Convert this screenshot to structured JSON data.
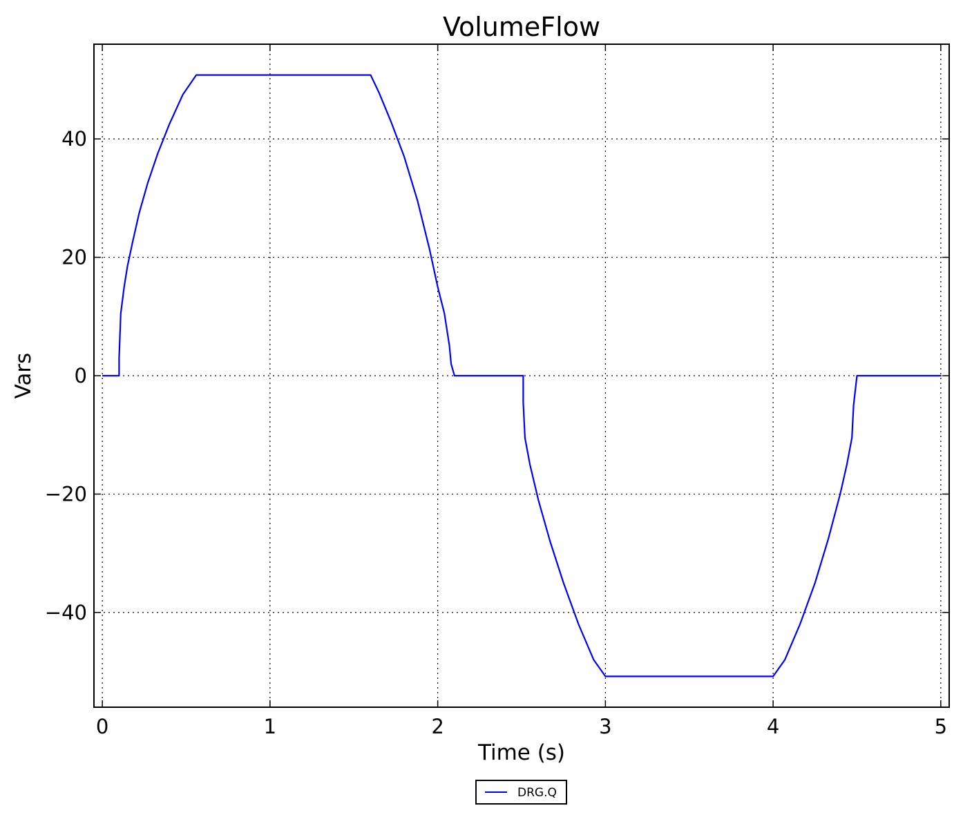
{
  "chart_data": {
    "type": "line",
    "title": "VolumeFlow",
    "xlabel": "Time (s)",
    "ylabel": "Vars",
    "xlim": [
      -0.05,
      5.05
    ],
    "ylim": [
      -56,
      56
    ],
    "xticks": [
      0,
      1,
      2,
      3,
      4,
      5
    ],
    "xtick_labels": [
      "0",
      "1",
      "2",
      "3",
      "4",
      "5"
    ],
    "yticks": [
      -40,
      -20,
      0,
      20,
      40
    ],
    "ytick_labels": [
      "−40",
      "−20",
      "0",
      "20",
      "40"
    ],
    "grid": true,
    "legend_position": "bottom-center",
    "series": [
      {
        "name": "DRG.Q",
        "color": "#0000ff",
        "x": [
          0,
          0.1,
          0.1,
          0.11,
          0.13,
          0.15,
          0.18,
          0.22,
          0.27,
          0.33,
          0.4,
          0.48,
          0.56,
          0.6,
          1.0,
          1.4,
          1.6,
          1.65,
          1.72,
          1.8,
          1.88,
          1.95,
          2.0,
          2.04,
          2.07,
          2.08,
          2.1,
          2.3,
          2.51,
          2.51,
          2.52,
          2.55,
          2.6,
          2.67,
          2.75,
          2.84,
          2.93,
          3.0,
          3.5,
          4.0,
          4.07,
          4.16,
          4.25,
          4.33,
          4.4,
          4.44,
          4.47,
          4.48,
          4.5,
          4.75,
          5.0
        ],
        "y": [
          0,
          0,
          3,
          10.5,
          15,
          18.5,
          22.5,
          27.5,
          32.5,
          37.5,
          42.5,
          47.5,
          50.8,
          50.8,
          50.8,
          50.8,
          50.8,
          47.8,
          43,
          37,
          29.5,
          21.5,
          15,
          10.5,
          5,
          2,
          0,
          0,
          0,
          -4.5,
          -10.5,
          -15,
          -21,
          -28,
          -35,
          -42,
          -48,
          -50.8,
          -50.8,
          -50.8,
          -48,
          -42,
          -35,
          -27.5,
          -20,
          -15,
          -10.5,
          -5,
          0,
          0,
          0
        ]
      }
    ]
  }
}
